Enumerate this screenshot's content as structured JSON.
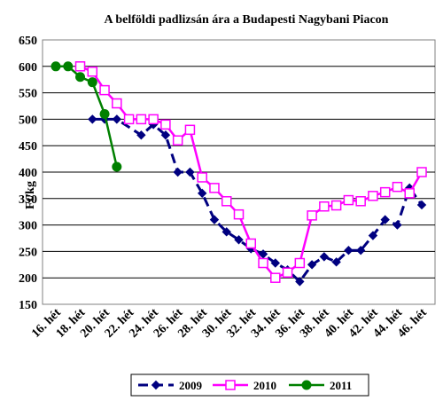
{
  "chart_data": {
    "type": "line",
    "title": "A belföldi padlizsán ára a Budapesti Nagybani Piacon",
    "ylabel": "Ft/kg",
    "xlabel": "",
    "ylim": [
      150,
      650
    ],
    "yticks": [
      150,
      200,
      250,
      300,
      350,
      400,
      450,
      500,
      550,
      600,
      650
    ],
    "categories": [
      "16. hét",
      "17. hét",
      "18. hét",
      "19. hét",
      "20. hét",
      "21. hét",
      "22. hét",
      "23. hét",
      "24. hét",
      "25. hét",
      "26. hét",
      "27. hét",
      "28. hét",
      "29. hét",
      "30. hét",
      "31. hét",
      "32. hét",
      "33. hét",
      "34. hét",
      "35. hét",
      "36. hét",
      "37. hét",
      "38. hét",
      "39. hét",
      "40. hét",
      "41. hét",
      "42. hét",
      "43. hét",
      "44. hét",
      "45. hét",
      "46. hét"
    ],
    "tick_labels": [
      "16. hét",
      "18. hét",
      "20. hét",
      "22. hét",
      "24. hét",
      "26. hét",
      "28. hét",
      "30. hét",
      "32. hét",
      "34. hét",
      "36. hét",
      "38. hét",
      "40. hét",
      "42. hét",
      "44. hét",
      "46. hét"
    ],
    "grid": true,
    "legend": "bottom",
    "series": [
      {
        "name": "2009",
        "color": "#000080",
        "marker": "diamond",
        "values": [
          null,
          null,
          null,
          500,
          500,
          500,
          null,
          470,
          490,
          470,
          400,
          400,
          360,
          310,
          287,
          272,
          255,
          245,
          228,
          215,
          193,
          225,
          240,
          230,
          252,
          252,
          280,
          310,
          300,
          370,
          338
        ]
      },
      {
        "name": "2010",
        "color": "#ff00ff",
        "marker": "square",
        "values": [
          null,
          null,
          600,
          590,
          555,
          530,
          500,
          500,
          500,
          490,
          460,
          480,
          390,
          370,
          345,
          320,
          265,
          228,
          200,
          210,
          228,
          318,
          335,
          337,
          347,
          345,
          355,
          362,
          372,
          360,
          400
        ]
      },
      {
        "name": "2011",
        "color": "#008000",
        "marker": "circle",
        "values": [
          600,
          600,
          580,
          570,
          510,
          410,
          null,
          null,
          null,
          null,
          null,
          null,
          null,
          null,
          null,
          null,
          null,
          null,
          null,
          null,
          null,
          null,
          null,
          null,
          null,
          null,
          null,
          null,
          null,
          null,
          null
        ]
      }
    ]
  }
}
